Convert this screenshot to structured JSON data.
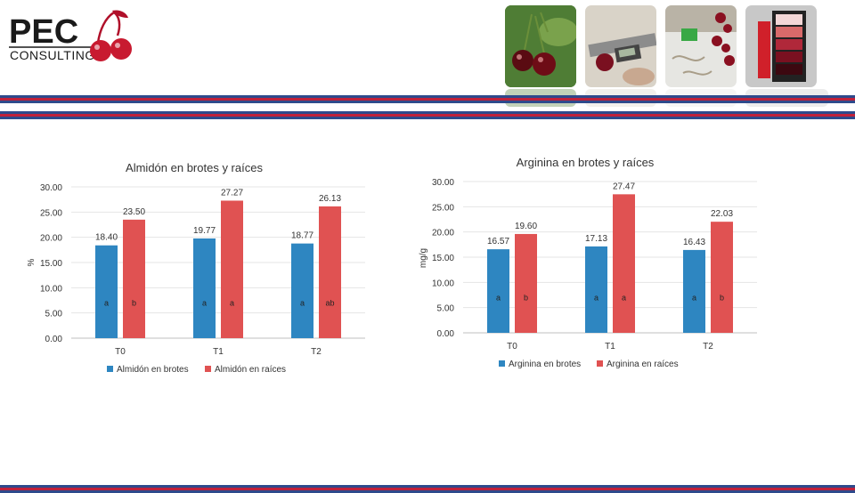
{
  "logo": {
    "text": "PEC",
    "subtitle": "CONSULTING"
  },
  "photos": [
    {
      "name": "cherries-photo"
    },
    {
      "name": "caliper-photo"
    },
    {
      "name": "lab-samples-photo"
    },
    {
      "name": "color-chart-photo"
    }
  ],
  "colors": {
    "band_blue": "#2e4a8c",
    "band_red": "#c0213a",
    "series_blue": "#2e86c1",
    "series_red": "#e05252"
  },
  "chart_data": [
    {
      "type": "bar",
      "title": "Almidón en brotes y raíces",
      "xlabel": "",
      "ylabel": "%",
      "ylim": [
        0,
        30
      ],
      "yticks": [
        "0.00",
        "5.00",
        "10.00",
        "15.00",
        "20.00",
        "25.00",
        "30.00"
      ],
      "categories": [
        "T0",
        "T1",
        "T2"
      ],
      "series": [
        {
          "name": "Almidón en brotes",
          "values": [
            18.4,
            19.77,
            18.77
          ],
          "labels": [
            "18.40",
            "19.77",
            "18.77"
          ],
          "letters": [
            "a",
            "a",
            "a"
          ]
        },
        {
          "name": "Almidón en raíces",
          "values": [
            23.5,
            27.27,
            26.13
          ],
          "labels": [
            "23.50",
            "27.27",
            "26.13"
          ],
          "letters": [
            "b",
            "a",
            "ab"
          ]
        }
      ],
      "grid": true,
      "legend": "bottom"
    },
    {
      "type": "bar",
      "title": "Arginina en brotes y raíces",
      "xlabel": "",
      "ylabel": "mg/g",
      "ylim": [
        0,
        30
      ],
      "yticks": [
        "0.00",
        "5.00",
        "10.00",
        "15.00",
        "20.00",
        "25.00",
        "30.00"
      ],
      "categories": [
        "T0",
        "T1",
        "T2"
      ],
      "series": [
        {
          "name": "Arginina en brotes",
          "values": [
            16.57,
            17.13,
            16.43
          ],
          "labels": [
            "16.57",
            "17.13",
            "16.43"
          ],
          "letters": [
            "a",
            "a",
            "a"
          ]
        },
        {
          "name": "Arginina en raíces",
          "values": [
            19.6,
            27.47,
            22.03
          ],
          "labels": [
            "19.60",
            "27.47",
            "22.03"
          ],
          "letters": [
            "b",
            "a",
            "b"
          ]
        }
      ],
      "grid": true,
      "legend": "bottom"
    }
  ]
}
